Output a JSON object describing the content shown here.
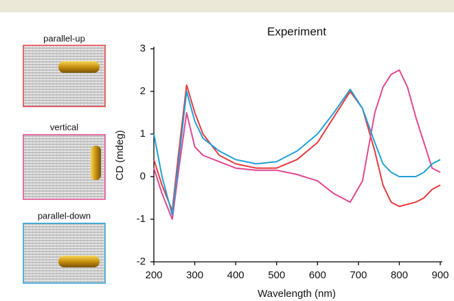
{
  "chart_data": {
    "type": "line",
    "title": "Experiment",
    "x_label": "Wavelength (nm)",
    "y_label": "CD (mdeg)",
    "x": [
      200,
      220,
      245,
      260,
      280,
      300,
      320,
      360,
      400,
      450,
      500,
      550,
      600,
      640,
      680,
      710,
      740,
      760,
      780,
      800,
      820,
      840,
      860,
      880,
      900
    ],
    "series": [
      {
        "name": "parallel-up",
        "color": "#e8383d",
        "values": [
          0.4,
          -0.2,
          -0.8,
          0.5,
          2.15,
          1.5,
          1.0,
          0.5,
          0.3,
          0.2,
          0.2,
          0.4,
          0.8,
          1.4,
          2.0,
          1.6,
          0.6,
          -0.2,
          -0.6,
          -0.7,
          -0.65,
          -0.6,
          -0.5,
          -0.3,
          -0.2
        ]
      },
      {
        "name": "vertical",
        "color": "#e0468e",
        "values": [
          0.2,
          -0.4,
          -1.0,
          0.1,
          1.5,
          0.7,
          0.5,
          0.35,
          0.2,
          0.15,
          0.15,
          0.05,
          -0.1,
          -0.4,
          -0.6,
          -0.1,
          1.5,
          2.1,
          2.4,
          2.5,
          2.1,
          1.4,
          0.8,
          0.2,
          0.1
        ]
      },
      {
        "name": "parallel-down",
        "color": "#1ea0d6",
        "values": [
          1.0,
          0.0,
          -0.9,
          0.3,
          2.0,
          1.3,
          0.9,
          0.6,
          0.4,
          0.3,
          0.35,
          0.6,
          1.0,
          1.5,
          2.05,
          1.6,
          0.8,
          0.3,
          0.1,
          0.0,
          0.0,
          0.0,
          0.1,
          0.3,
          0.4
        ]
      }
    ],
    "xlim": [
      200,
      900
    ],
    "xticks": [
      200,
      300,
      400,
      500,
      600,
      700,
      800,
      900
    ],
    "ylim": [
      -2,
      3
    ],
    "yticks": [
      -2,
      -1,
      0,
      1,
      2,
      3
    ]
  }
}
